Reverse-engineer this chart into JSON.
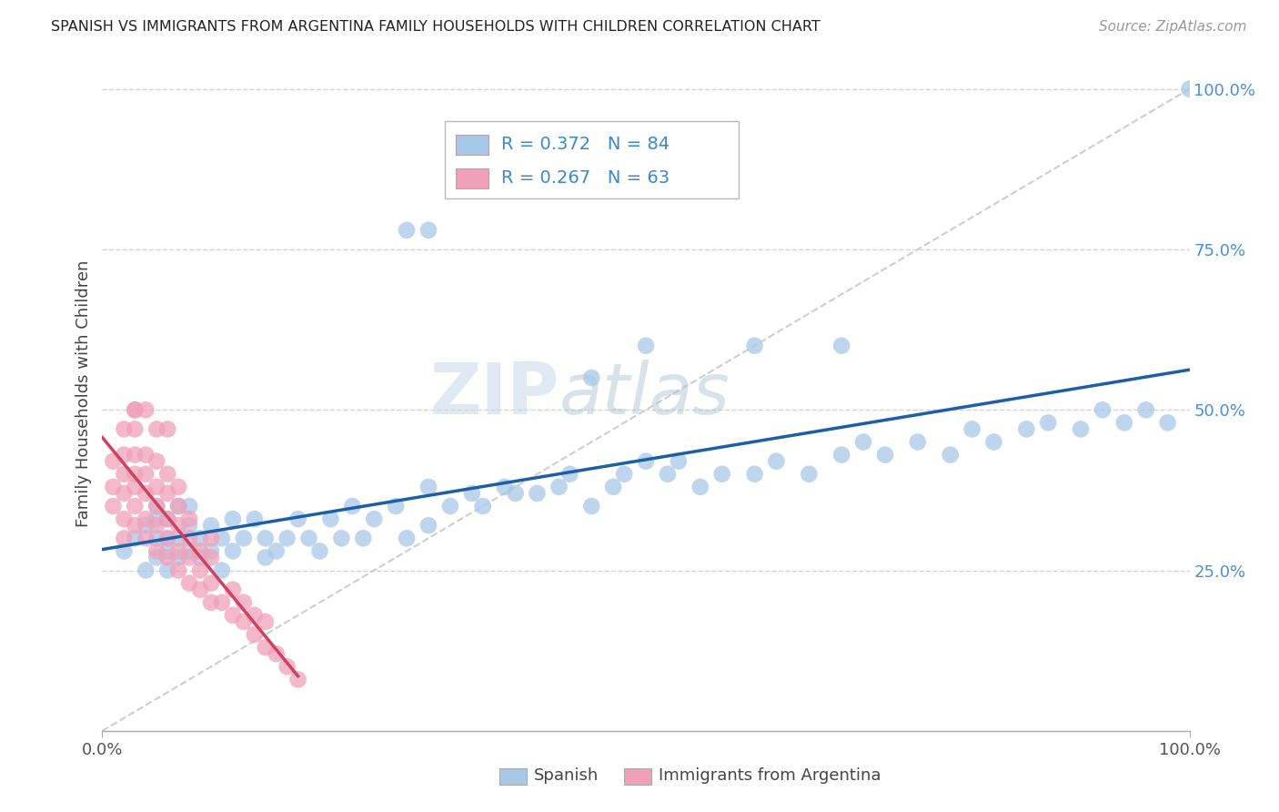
{
  "title": "SPANISH VS IMMIGRANTS FROM ARGENTINA FAMILY HOUSEHOLDS WITH CHILDREN CORRELATION CHART",
  "source": "Source: ZipAtlas.com",
  "ylabel": "Family Households with Children",
  "legend_labels": [
    "Spanish",
    "Immigrants from Argentina"
  ],
  "r_spanish": 0.372,
  "n_spanish": 84,
  "r_argentina": 0.267,
  "n_argentina": 63,
  "color_spanish": "#a8c8e8",
  "color_argentina": "#f0a0b8",
  "trendline_color_spanish": "#1a5fa8",
  "trendline_color_argentina": "#d04060",
  "diagonal_color": "#c8c8c8",
  "grid_color": "#d0d0d0",
  "background_color": "#ffffff",
  "watermark": "ZIPatlas",
  "watermark_zip_color": "#d0dce8",
  "watermark_atlas_color": "#b8ccd8",
  "ytick_positions": [
    0.25,
    0.5,
    0.75,
    1.0
  ],
  "ytick_labels": [
    "25.0%",
    "50.0%",
    "75.0%",
    "100.0%"
  ],
  "spanish_x": [
    0.02,
    0.03,
    0.04,
    0.04,
    0.05,
    0.05,
    0.05,
    0.05,
    0.06,
    0.06,
    0.06,
    0.06,
    0.07,
    0.07,
    0.07,
    0.08,
    0.08,
    0.08,
    0.09,
    0.09,
    0.1,
    0.1,
    0.11,
    0.11,
    0.12,
    0.12,
    0.13,
    0.14,
    0.15,
    0.15,
    0.16,
    0.17,
    0.18,
    0.19,
    0.2,
    0.21,
    0.22,
    0.23,
    0.24,
    0.25,
    0.27,
    0.28,
    0.3,
    0.3,
    0.32,
    0.34,
    0.35,
    0.37,
    0.38,
    0.4,
    0.42,
    0.43,
    0.45,
    0.47,
    0.48,
    0.5,
    0.52,
    0.53,
    0.55,
    0.57,
    0.6,
    0.62,
    0.65,
    0.68,
    0.7,
    0.72,
    0.75,
    0.78,
    0.8,
    0.82,
    0.85,
    0.87,
    0.9,
    0.92,
    0.94,
    0.96,
    0.98,
    1.0,
    0.68,
    0.6,
    0.3,
    0.28,
    0.5,
    0.45
  ],
  "spanish_y": [
    0.28,
    0.3,
    0.25,
    0.32,
    0.27,
    0.3,
    0.33,
    0.35,
    0.25,
    0.28,
    0.3,
    0.33,
    0.27,
    0.3,
    0.35,
    0.28,
    0.32,
    0.35,
    0.27,
    0.3,
    0.28,
    0.32,
    0.25,
    0.3,
    0.28,
    0.33,
    0.3,
    0.33,
    0.27,
    0.3,
    0.28,
    0.3,
    0.33,
    0.3,
    0.28,
    0.33,
    0.3,
    0.35,
    0.3,
    0.33,
    0.35,
    0.3,
    0.38,
    0.32,
    0.35,
    0.37,
    0.35,
    0.38,
    0.37,
    0.37,
    0.38,
    0.4,
    0.35,
    0.38,
    0.4,
    0.42,
    0.4,
    0.42,
    0.38,
    0.4,
    0.4,
    0.42,
    0.4,
    0.43,
    0.45,
    0.43,
    0.45,
    0.43,
    0.47,
    0.45,
    0.47,
    0.48,
    0.47,
    0.5,
    0.48,
    0.5,
    0.48,
    1.0,
    0.6,
    0.6,
    0.78,
    0.78,
    0.6,
    0.55
  ],
  "argentina_x": [
    0.01,
    0.01,
    0.01,
    0.02,
    0.02,
    0.02,
    0.02,
    0.02,
    0.02,
    0.03,
    0.03,
    0.03,
    0.03,
    0.03,
    0.03,
    0.03,
    0.04,
    0.04,
    0.04,
    0.04,
    0.04,
    0.05,
    0.05,
    0.05,
    0.05,
    0.05,
    0.05,
    0.06,
    0.06,
    0.06,
    0.06,
    0.06,
    0.07,
    0.07,
    0.07,
    0.07,
    0.07,
    0.08,
    0.08,
    0.08,
    0.08,
    0.09,
    0.09,
    0.09,
    0.1,
    0.1,
    0.1,
    0.1,
    0.11,
    0.12,
    0.12,
    0.13,
    0.13,
    0.14,
    0.14,
    0.15,
    0.15,
    0.16,
    0.17,
    0.18,
    0.03,
    0.04,
    0.06
  ],
  "argentina_y": [
    0.35,
    0.38,
    0.42,
    0.3,
    0.33,
    0.37,
    0.4,
    0.43,
    0.47,
    0.32,
    0.35,
    0.38,
    0.4,
    0.43,
    0.47,
    0.5,
    0.3,
    0.33,
    0.37,
    0.4,
    0.43,
    0.28,
    0.32,
    0.35,
    0.38,
    0.42,
    0.47,
    0.27,
    0.3,
    0.33,
    0.37,
    0.4,
    0.25,
    0.28,
    0.32,
    0.35,
    0.38,
    0.23,
    0.27,
    0.3,
    0.33,
    0.22,
    0.25,
    0.28,
    0.2,
    0.23,
    0.27,
    0.3,
    0.2,
    0.18,
    0.22,
    0.17,
    0.2,
    0.15,
    0.18,
    0.13,
    0.17,
    0.12,
    0.1,
    0.08,
    0.5,
    0.5,
    0.47
  ]
}
